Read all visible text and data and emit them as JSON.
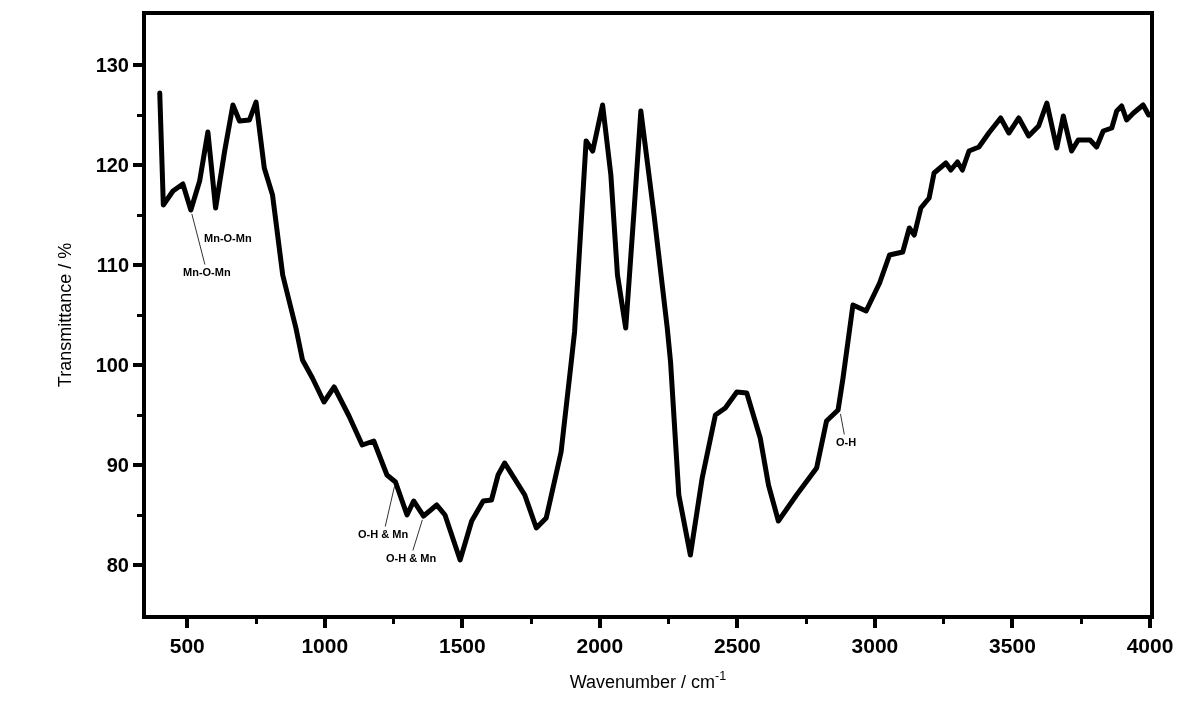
{
  "chart_data": {
    "type": "line",
    "xlabel": "Wavenumber / cm$^{-1}$",
    "ylabel": "Transmittance / %",
    "xlim": [
      350,
      4000
    ],
    "ylim": [
      75,
      135
    ],
    "xticks": [
      500,
      {
        "value": 750,
        "label": null
      },
      1000,
      {
        "value": 1250,
        "label": null
      },
      1500,
      {
        "value": 1750,
        "label": null
      },
      2000,
      {
        "value": 2250,
        "label": null
      },
      2500,
      {
        "value": 2750,
        "label": null
      },
      3000,
      {
        "value": 3250,
        "label": null
      },
      3500,
      {
        "value": 3750,
        "label": null
      },
      4000
    ],
    "yticks": [
      80,
      {
        "value": 85,
        "label": null
      },
      90,
      {
        "value": 95,
        "label": null
      },
      100,
      {
        "value": 105,
        "label": null
      },
      110,
      {
        "value": 115,
        "label": null
      },
      120,
      {
        "value": 125,
        "label": null
      },
      130
    ],
    "grid": false,
    "marker": "none",
    "line_style": "solid",
    "series": [
      {
        "color": "#000000",
        "x": [
          400,
          413,
          448,
          484,
          513,
          545,
          575,
          603,
          636,
          666,
          690,
          726,
          750,
          780,
          810,
          847,
          895,
          919,
          955,
          997,
          1034,
          1088,
          1136,
          1178,
          1226,
          1257,
          1299,
          1323,
          1359,
          1407,
          1437,
          1492,
          1534,
          1576,
          1606,
          1630,
          1654,
          1727,
          1769,
          1805,
          1859,
          1896,
          1908,
          1950,
          1974,
          2010,
          2040,
          2064,
          2094,
          2125,
          2149,
          2197,
          2245,
          2257,
          2287,
          2329,
          2372,
          2420,
          2456,
          2498,
          2534,
          2583,
          2613,
          2649,
          2715,
          2788,
          2824,
          2866,
          2884,
          2920,
          2968,
          3017,
          3053,
          3101,
          3125,
          3143,
          3167,
          3197,
          3215,
          3258,
          3276,
          3300,
          3318,
          3342,
          3378,
          3414,
          3457,
          3487,
          3523,
          3559,
          3595,
          3625,
          3661,
          3685,
          3715,
          3739,
          3782,
          3806,
          3830,
          3861,
          3879,
          3897,
          3915,
          3940,
          3975,
          3995
        ],
        "values": [
          127.2,
          116,
          117.4,
          118.1,
          115.5,
          118.4,
          123.3,
          115.7,
          121.4,
          126,
          124.4,
          124.5,
          126.3,
          119.7,
          117,
          109,
          103.7,
          100.5,
          98.7,
          96.3,
          97.8,
          94.9,
          92,
          92.4,
          89,
          88.3,
          85,
          86.4,
          84.9,
          86,
          85,
          80.5,
          84.4,
          86.4,
          86.5,
          89,
          90.2,
          87,
          83.7,
          84.7,
          91.3,
          100.3,
          103.3,
          122.4,
          121.4,
          126,
          119,
          109,
          103.7,
          115.7,
          125.4,
          115,
          103.7,
          100.3,
          87,
          81,
          88.7,
          95,
          95.7,
          97.3,
          97.2,
          92.7,
          88,
          84.4,
          87,
          89.7,
          94.4,
          95.5,
          98.7,
          106,
          105.4,
          108.2,
          111,
          111.3,
          113.7,
          113,
          115.7,
          116.7,
          119.2,
          120.2,
          119.5,
          120.3,
          119.5,
          121.4,
          121.8,
          123.2,
          124.7,
          123.2,
          124.7,
          122.9,
          123.9,
          126.2,
          121.7,
          124.9,
          121.4,
          122.5,
          122.5,
          121.8,
          123.4,
          123.7,
          125.4,
          125.9,
          124.5,
          125.2,
          126,
          125
        ]
      }
    ],
    "annotations": [
      {
        "text": "Mn-O-Mn",
        "x": 513,
        "y": 115.5
      },
      {
        "text": "Mn-O-Mn",
        "x": 603,
        "y": 115.7
      },
      {
        "text": "O-H & Mn",
        "x": 1257,
        "y": 88.3
      },
      {
        "text": "O-H & Mn",
        "x": 1359,
        "y": 84.9
      },
      {
        "text": "O-H",
        "x": 2872,
        "y": 95.5
      }
    ]
  }
}
